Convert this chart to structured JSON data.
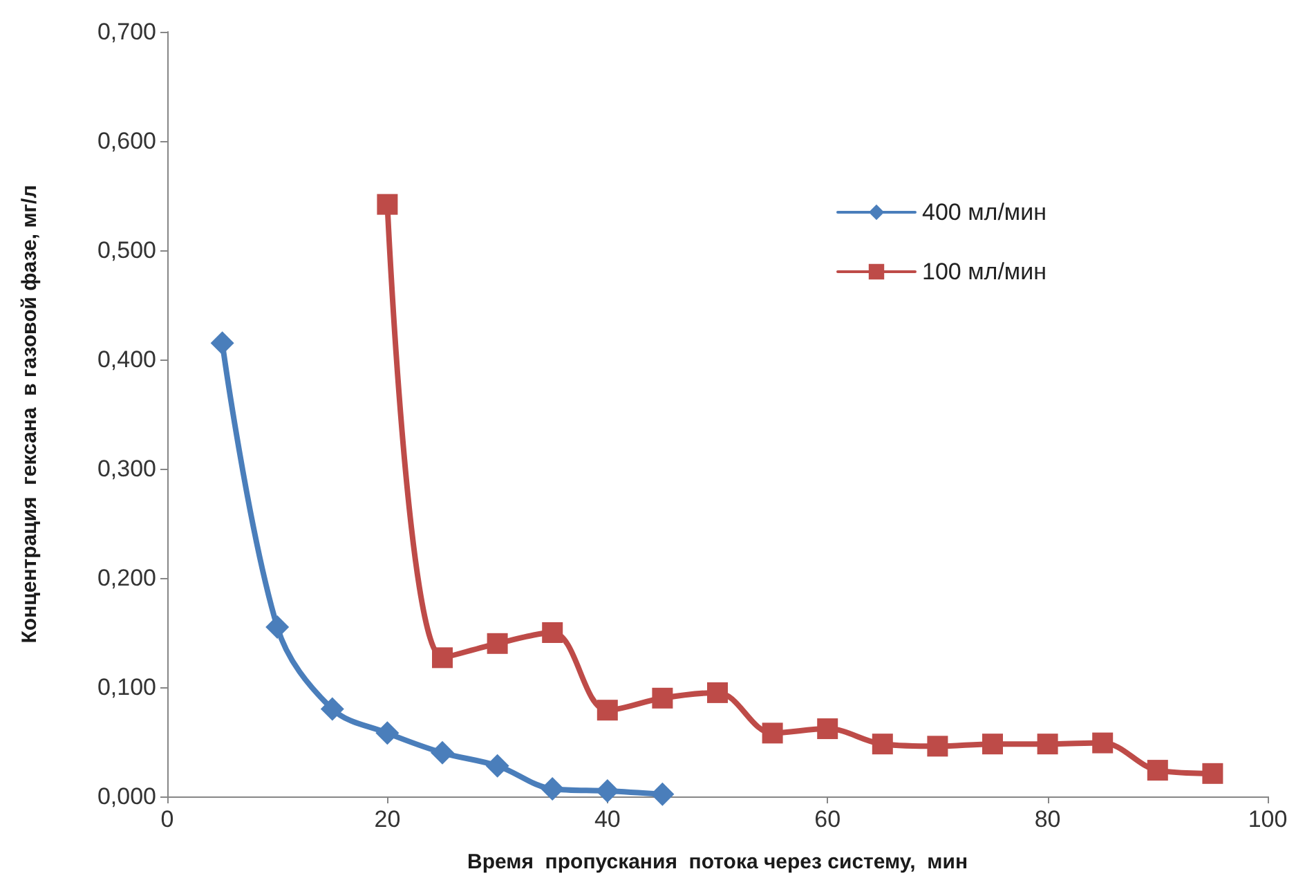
{
  "chart_data": {
    "type": "line",
    "xlabel": "Время  пропускания  потока через систему,  мин",
    "ylabel": "Концентрация  гексана  в газовой фазе, мг/л",
    "x": [
      5,
      10,
      15,
      20,
      25,
      30,
      35,
      40,
      45,
      50,
      55,
      60,
      65,
      70,
      75,
      80,
      85,
      90,
      95
    ],
    "series": [
      {
        "name": "400 мл/мин",
        "color": "#4a7ebb",
        "marker": "diamond",
        "values": [
          0.415,
          0.155,
          0.08,
          0.058,
          0.04,
          0.028,
          0.007,
          0.005,
          0.002,
          null,
          null,
          null,
          null,
          null,
          null,
          null,
          null,
          null,
          null
        ]
      },
      {
        "name": "100 мл/мин",
        "color": "#be4b48",
        "marker": "square",
        "values": [
          null,
          null,
          null,
          0.542,
          0.127,
          0.14,
          0.15,
          0.079,
          0.09,
          0.095,
          0.058,
          0.062,
          0.048,
          0.046,
          0.048,
          0.048,
          0.049,
          0.024,
          0.021
        ]
      }
    ],
    "xlim": [
      0,
      100
    ],
    "xticks": [
      0,
      20,
      40,
      60,
      80,
      100
    ],
    "ylim": [
      0,
      0.7
    ],
    "yticks": [
      {
        "value": 0,
        "label": "0,000"
      },
      {
        "value": 0.1,
        "label": "0,100"
      },
      {
        "value": 0.2,
        "label": "0,200"
      },
      {
        "value": 0.3,
        "label": "0,300"
      },
      {
        "value": 0.4,
        "label": "0,400"
      },
      {
        "value": 0.5,
        "label": "0,500"
      },
      {
        "value": 0.6,
        "label": "0,600"
      },
      {
        "value": 0.7,
        "label": "0,700"
      }
    ],
    "grid": false,
    "legend": "top right",
    "line_style": "solid"
  }
}
